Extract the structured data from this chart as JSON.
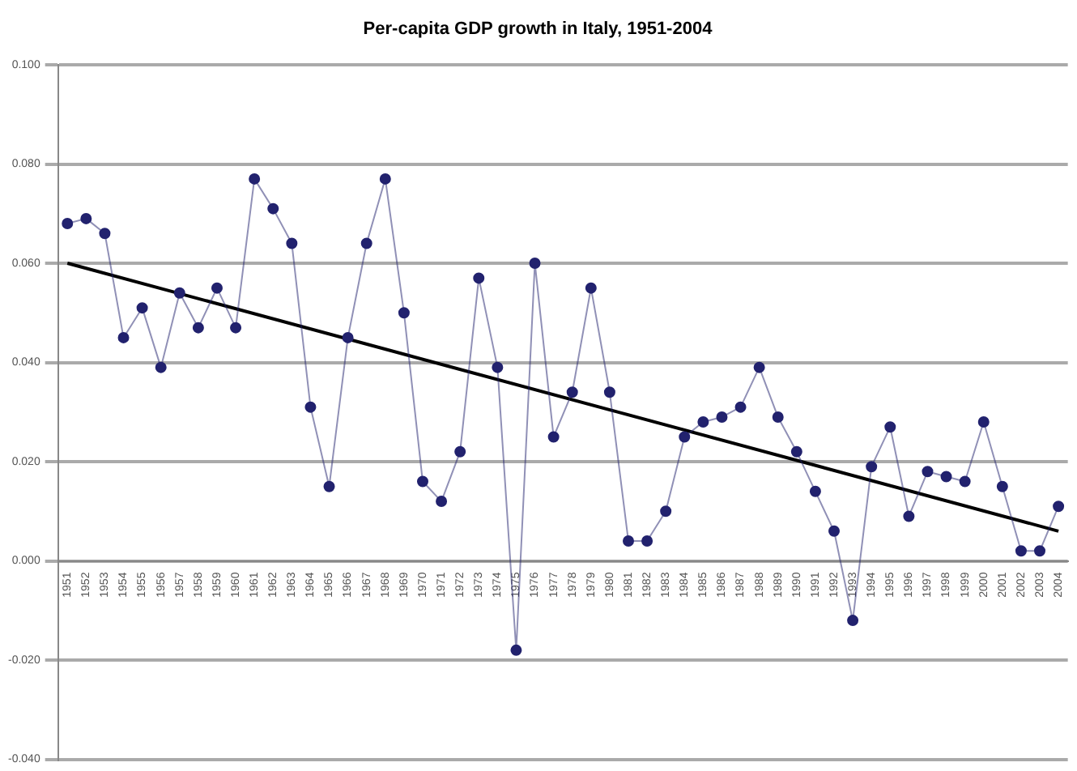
{
  "chart_data": {
    "type": "line",
    "title": "Per-capita GDP growth in Italy, 1951-2004",
    "x": [
      1951,
      1952,
      1953,
      1954,
      1955,
      1956,
      1957,
      1958,
      1959,
      1960,
      1961,
      1962,
      1963,
      1964,
      1965,
      1966,
      1967,
      1968,
      1969,
      1970,
      1971,
      1972,
      1973,
      1974,
      1975,
      1976,
      1977,
      1978,
      1979,
      1980,
      1981,
      1982,
      1983,
      1984,
      1985,
      1986,
      1987,
      1988,
      1989,
      1990,
      1991,
      1992,
      1993,
      1994,
      1995,
      1996,
      1997,
      1998,
      1999,
      2000,
      2001,
      2002,
      2003,
      2004
    ],
    "series": [
      {
        "color": "#22226e",
        "marker": "circle",
        "values": [
          0.068,
          0.069,
          0.066,
          0.045,
          0.051,
          0.039,
          0.054,
          0.047,
          0.055,
          0.047,
          0.077,
          0.071,
          0.064,
          0.031,
          0.015,
          0.045,
          0.064,
          0.077,
          0.05,
          0.016,
          0.012,
          0.022,
          0.057,
          0.039,
          -0.018,
          0.06,
          0.025,
          0.034,
          0.055,
          0.034,
          0.004,
          0.004,
          0.01,
          0.025,
          0.028,
          0.029,
          0.031,
          0.039,
          0.029,
          0.022,
          0.014,
          0.006,
          -0.012,
          0.019,
          0.027,
          0.009,
          0.018,
          0.017,
          0.016,
          0.028,
          0.015,
          0.002,
          0.002,
          0.011
        ]
      },
      {
        "type": "line",
        "color": "#000000",
        "marker": "none",
        "x": [
          1951,
          2004
        ],
        "values": [
          0.06,
          0.006
        ]
      }
    ],
    "xlim": [
      1950.5,
      2004.5
    ],
    "xticks": [
      1951,
      1952,
      1953,
      1954,
      1955,
      1956,
      1957,
      1958,
      1959,
      1960,
      1961,
      1962,
      1963,
      1964,
      1965,
      1966,
      1967,
      1968,
      1969,
      1970,
      1971,
      1972,
      1973,
      1974,
      1975,
      1976,
      1977,
      1978,
      1979,
      1980,
      1981,
      1982,
      1983,
      1984,
      1985,
      1986,
      1987,
      1988,
      1989,
      1990,
      1991,
      1992,
      1993,
      1994,
      1995,
      1996,
      1997,
      1998,
      1999,
      2000,
      2001,
      2002,
      2003,
      2004
    ],
    "ylim": [
      -0.04,
      0.1
    ],
    "yticks": [
      {
        "value": -0.04,
        "label": "-0.040"
      },
      {
        "value": -0.02,
        "label": "-0.020"
      },
      {
        "value": 0,
        "label": "0.000"
      },
      {
        "value": 0.02,
        "label": "0.020"
      },
      {
        "value": 0.04,
        "label": "0.040"
      },
      {
        "value": 0.06,
        "label": "0.060"
      },
      {
        "value": 0.08,
        "label": "0.080"
      },
      {
        "value": 0.1,
        "label": "0.100"
      }
    ],
    "grid": "y",
    "legend": false
  }
}
